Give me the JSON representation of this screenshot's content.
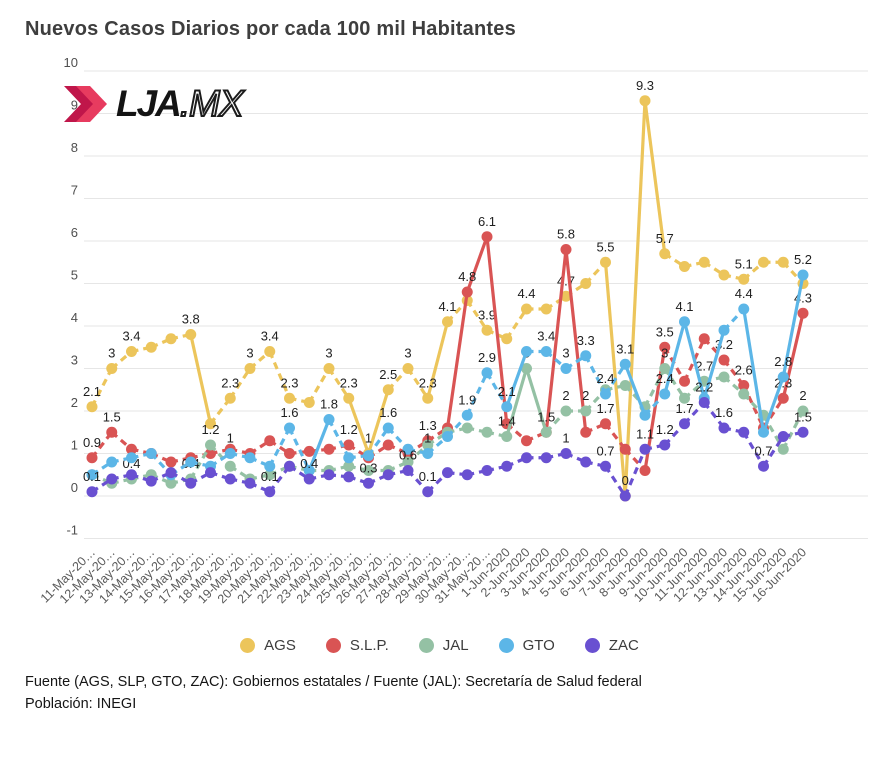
{
  "title": "Nuevos Casos Diarios por cada 100 mil Habitantes",
  "logo": {
    "brand": "LJA",
    "suffix": ".MX",
    "chevron_color": "#e73b5f",
    "chevron_color_dark": "#c0164a"
  },
  "footer": {
    "line1": "Fuente (AGS, SLP, GTO, ZAC): Gobiernos estatales / Fuente (JAL): Secretaría de Salud federal",
    "line2": "Población: INEGI"
  },
  "chart_data": {
    "type": "line",
    "title": "Nuevos Casos Diarios por cada 100 mil Habitantes",
    "grid": true,
    "legend_position": "bottom",
    "ylim": [
      -1,
      10
    ],
    "ytick_step": 1,
    "x": [
      "11-May-20…",
      "12-May-20…",
      "13-May-20…",
      "14-May-20…",
      "15-May-20…",
      "16-May-20…",
      "17-May-20…",
      "18-May-20…",
      "19-May-20…",
      "20-May-20…",
      "21-May-20…",
      "22-May-20…",
      "23-May-20…",
      "24-May-20…",
      "25-May-20…",
      "26-May-20…",
      "27-May-20…",
      "28-May-20…",
      "29-May-20…",
      "30-May-20…",
      "31-May-20…",
      "1-Jun-2020",
      "2-Jun-2020",
      "3-Jun-2020",
      "4-Jun-2020",
      "5-Jun-2020",
      "6-Jun-2020",
      "7-Jun-2020",
      "8-Jun-2020",
      "9-Jun-2020",
      "10-Jun-2020",
      "11-Jun-2020",
      "12-Jun-2020",
      "13-Jun-2020",
      "14-Jun-2020",
      "15-Jun-2020",
      "16-Jun-2020"
    ],
    "series": [
      {
        "name": "AGS",
        "color": "#ecc55b",
        "values": [
          2.1,
          3,
          3.4,
          3.5,
          3.7,
          3.8,
          1.7,
          2.3,
          3,
          3.4,
          2.3,
          2.2,
          3,
          2.3,
          1,
          2.5,
          3,
          2.3,
          4.1,
          4.6,
          3.9,
          3.7,
          4.4,
          4.4,
          4.7,
          5,
          5.5,
          0,
          9.3,
          5.7,
          5.4,
          5.5,
          5.2,
          5.1,
          5.5,
          5.5,
          5.0
        ],
        "labels": {
          "0": "2.1",
          "1": "3",
          "2": "3.4",
          "5": "3.8",
          "7": "2.3",
          "8": "3",
          "9": "3.4",
          "10": "2.3",
          "12": "3",
          "13": "2.3",
          "14": "1",
          "15": "2.5",
          "16": "3",
          "17": "2.3",
          "18": "4.1",
          "20": "3.9",
          "22": "4.4",
          "24": "4.7",
          "26": "5.5",
          "28": "9.3",
          "29": "5.7",
          "33": "5.1"
        }
      },
      {
        "name": "S.L.P.",
        "color": "#d95454",
        "values": [
          0.9,
          1.5,
          1.1,
          1,
          0.8,
          0.9,
          1,
          1.1,
          1,
          1.3,
          1,
          1.05,
          1.1,
          1.2,
          0.9,
          1.2,
          1,
          1.3,
          1.6,
          4.8,
          6.1,
          1.7,
          1.3,
          1.5,
          5.8,
          1.5,
          1.7,
          1.1,
          0.6,
          3.5,
          2.7,
          3.7,
          3.2,
          2.6,
          1.6,
          2.3,
          4.3
        ],
        "labels": {
          "0": "0.9",
          "1": "1.5",
          "13": "1.2",
          "17": "1.3",
          "19": "4.8",
          "20": "6.1",
          "24": "5.8",
          "26": "1.7",
          "29": "3.5",
          "32": "3.2",
          "33": "2.6",
          "35": "2.3",
          "36": "4.3"
        }
      },
      {
        "name": "JAL",
        "color": "#94c1a4",
        "values": [
          0.5,
          0.3,
          0.4,
          0.5,
          0.3,
          0.4,
          1.2,
          0.7,
          0.4,
          0.5,
          0.7,
          0.6,
          0.6,
          0.7,
          0.6,
          0.6,
          0.8,
          1.2,
          1.5,
          1.6,
          1.5,
          1.4,
          3,
          1.5,
          2,
          2,
          2.5,
          2.6,
          2.1,
          3,
          2.3,
          2.7,
          2.8,
          2.4,
          1.9,
          1.1,
          2
        ],
        "labels": {
          "2": "0.4",
          "5": "0.4",
          "6": "1.2",
          "21": "1.4",
          "22": "3",
          "23": "1.5",
          "24": "2",
          "25": "2",
          "29": "3",
          "31": "2.7",
          "36": "2"
        }
      },
      {
        "name": "GTO",
        "color": "#5cb6e7",
        "values": [
          0.5,
          0.8,
          0.9,
          1.0,
          0.5,
          0.8,
          0.7,
          1,
          0.9,
          0.7,
          1.6,
          0.6,
          1.8,
          0.9,
          0.95,
          1.6,
          1.1,
          1,
          1.4,
          1.9,
          2.9,
          2.1,
          3.4,
          3.4,
          3,
          3.3,
          2.4,
          3.1,
          1.9,
          2.4,
          4.1,
          2.3,
          3.9,
          4.4,
          1.5,
          2.8,
          5.2
        ],
        "labels": {
          "7": "1",
          "10": "1.6",
          "12": "1.8",
          "15": "1.6",
          "17": "1",
          "19": "1.9",
          "20": "2.9",
          "21": "2.1",
          "23": "3.4",
          "24": "3",
          "25": "3.3",
          "26": "2.4",
          "27": "3.1",
          "29": "2.4",
          "30": "4.1",
          "33": "4.4",
          "35": "2.8",
          "36": "5.2"
        }
      },
      {
        "name": "ZAC",
        "color": "#6950d1",
        "values": [
          0.1,
          0.4,
          0.5,
          0.35,
          0.55,
          0.3,
          0.55,
          0.4,
          0.3,
          0.1,
          0.7,
          0.4,
          0.5,
          0.45,
          0.3,
          0.5,
          0.6,
          0.1,
          0.55,
          0.5,
          0.6,
          0.7,
          0.9,
          0.9,
          1,
          0.8,
          0.7,
          0,
          1.1,
          1.2,
          1.7,
          2.2,
          1.6,
          1.5,
          0.7,
          1.4,
          1.5
        ],
        "labels": {
          "0": "0.1",
          "9": "0.1",
          "11": "0.4",
          "14": "0.3",
          "16": "0.6",
          "17": "0.1",
          "24": "1",
          "26": "0.7",
          "27": "0",
          "28": "1.1",
          "29": "1.2",
          "30": "1.7",
          "31": "2.2",
          "32": "1.6",
          "34": "0.7",
          "36": "1.5"
        }
      }
    ]
  }
}
